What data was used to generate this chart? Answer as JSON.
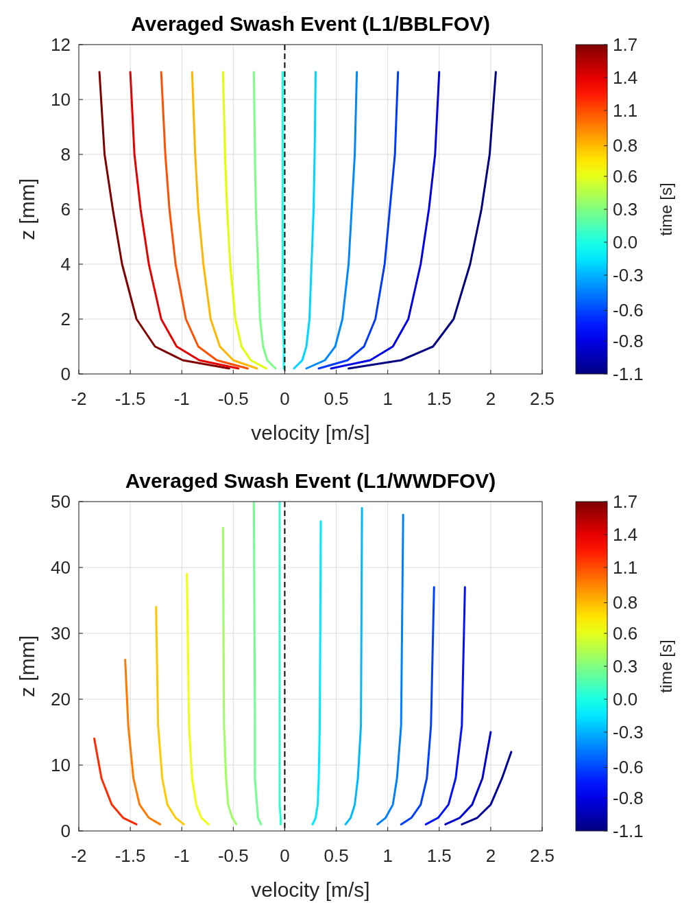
{
  "chart_data": [
    {
      "type": "line",
      "title": "Averaged Swash Event (L1/BBLFOV)",
      "xlabel": "velocity [m/s]",
      "ylabel": "z [mm]",
      "clabel": "time [s]",
      "xlim": [
        -2,
        2.5
      ],
      "xticks": [
        -2,
        -1.5,
        -1,
        -0.5,
        0,
        0.5,
        1,
        1.5,
        2,
        2.5
      ],
      "ylim": [
        0,
        12
      ],
      "yticks": [
        0,
        2,
        4,
        6,
        8,
        10,
        12
      ],
      "clim": [
        -1.1,
        1.7
      ],
      "cticks": [
        {
          "value": -1.1,
          "label": "-1.1"
        },
        {
          "value": -0.82,
          "label": "-0.8"
        },
        {
          "value": -0.56,
          "label": "-0.6"
        },
        {
          "value": -0.26,
          "label": "-0.3"
        },
        {
          "value": 0.02,
          "label": "0.0"
        },
        {
          "value": 0.3,
          "label": "0.3"
        },
        {
          "value": 0.58,
          "label": "0.6"
        },
        {
          "value": 0.84,
          "label": "0.8"
        },
        {
          "value": 1.14,
          "label": "1.1"
        },
        {
          "value": 1.42,
          "label": "1.4"
        },
        {
          "value": 1.7,
          "label": "1.7"
        }
      ],
      "grid": true,
      "ref_lines": [
        {
          "axis": "x",
          "value": 0,
          "color": "#000000",
          "line_style": "dashed"
        }
      ],
      "series": [
        {
          "color": "#800000",
          "x": [
            -0.54,
            -0.99,
            -1.26,
            -1.44,
            -1.58,
            -1.67,
            -1.75,
            -1.8
          ],
          "values": [
            0.2,
            0.5,
            1,
            2,
            4,
            6,
            8,
            11
          ]
        },
        {
          "color": "#e60000",
          "x": [
            -0.45,
            -0.83,
            -1.05,
            -1.2,
            -1.32,
            -1.4,
            -1.46,
            -1.5
          ],
          "values": [
            0.2,
            0.5,
            1,
            2,
            4,
            6,
            8,
            11
          ]
        },
        {
          "color": "#ff4f00",
          "x": [
            -0.36,
            -0.66,
            -0.84,
            -0.96,
            -1.06,
            -1.12,
            -1.16,
            -1.2
          ],
          "values": [
            0.2,
            0.5,
            1,
            2,
            4,
            6,
            8,
            11
          ]
        },
        {
          "color": "#ffb600",
          "x": [
            -0.27,
            -0.5,
            -0.63,
            -0.72,
            -0.79,
            -0.84,
            -0.87,
            -0.9
          ],
          "values": [
            0.2,
            0.5,
            1,
            2,
            4,
            6,
            8,
            11
          ]
        },
        {
          "color": "#e0ff00",
          "x": [
            -0.18,
            -0.33,
            -0.42,
            -0.48,
            -0.53,
            -0.56,
            -0.58,
            -0.6
          ],
          "values": [
            0.2,
            0.5,
            1,
            2,
            4,
            6,
            8,
            11
          ]
        },
        {
          "color": "#7aff85",
          "x": [
            -0.09,
            -0.17,
            -0.21,
            -0.24,
            -0.26,
            -0.28,
            -0.29,
            -0.3
          ],
          "values": [
            0.2,
            0.5,
            1,
            2,
            4,
            6,
            8,
            11
          ]
        },
        {
          "color": "#12ffed",
          "x": [
            -0.01,
            -0.01,
            -0.01,
            -0.02,
            -0.02,
            -0.02,
            -0.02,
            -0.02
          ],
          "values": [
            0.2,
            0.5,
            1,
            2,
            4,
            6,
            8,
            11
          ]
        },
        {
          "color": "#00d6ff",
          "x": [
            0.09,
            0.17,
            0.21,
            0.24,
            0.26,
            0.28,
            0.29,
            0.3
          ],
          "values": [
            0.2,
            0.5,
            1,
            2,
            4,
            6,
            8,
            11
          ]
        },
        {
          "color": "#0088ff",
          "x": [
            0.21,
            0.39,
            0.49,
            0.56,
            0.62,
            0.65,
            0.68,
            0.7
          ],
          "values": [
            0.2,
            0.5,
            1,
            2,
            4,
            6,
            8,
            11
          ]
        },
        {
          "color": "#003aff",
          "x": [
            0.33,
            0.61,
            0.77,
            0.88,
            0.97,
            1.02,
            1.07,
            1.1
          ],
          "values": [
            0.2,
            0.5,
            1,
            2,
            4,
            6,
            8,
            11
          ]
        },
        {
          "color": "#0000eb",
          "x": [
            0.45,
            0.83,
            1.05,
            1.2,
            1.32,
            1.4,
            1.46,
            1.5
          ],
          "values": [
            0.2,
            0.5,
            1,
            2,
            4,
            6,
            8,
            11
          ]
        },
        {
          "color": "#000080",
          "x": [
            0.62,
            1.13,
            1.44,
            1.64,
            1.8,
            1.91,
            1.99,
            2.05
          ],
          "values": [
            0.2,
            0.5,
            1,
            2,
            4,
            6,
            8,
            11
          ]
        }
      ]
    },
    {
      "type": "line",
      "title": "Averaged Swash Event (L1/WWDFOV)",
      "xlabel": "velocity [m/s]",
      "ylabel": "z [mm]",
      "clabel": "time [s]",
      "xlim": [
        -2,
        2.5
      ],
      "xticks": [
        -2,
        -1.5,
        -1,
        -0.5,
        0,
        0.5,
        1,
        1.5,
        2,
        2.5
      ],
      "ylim": [
        0,
        50
      ],
      "yticks": [
        0,
        10,
        20,
        30,
        40,
        50
      ],
      "clim": [
        -1.1,
        1.7
      ],
      "cticks": [
        {
          "value": -1.1,
          "label": "-1.1"
        },
        {
          "value": -0.82,
          "label": "-0.8"
        },
        {
          "value": -0.56,
          "label": "-0.6"
        },
        {
          "value": -0.26,
          "label": "-0.3"
        },
        {
          "value": 0.02,
          "label": "0.0"
        },
        {
          "value": 0.3,
          "label": "0.3"
        },
        {
          "value": 0.58,
          "label": "0.6"
        },
        {
          "value": 0.84,
          "label": "0.8"
        },
        {
          "value": 1.14,
          "label": "1.1"
        },
        {
          "value": 1.42,
          "label": "1.4"
        },
        {
          "value": 1.7,
          "label": "1.7"
        }
      ],
      "grid": true,
      "ref_lines": [
        {
          "axis": "x",
          "value": 0,
          "color": "#000000",
          "line_style": "dashed"
        }
      ],
      "series": [
        {
          "color": "#ff2a00",
          "x": [
            -1.44,
            -1.57,
            -1.68,
            -1.78,
            -1.85
          ],
          "values": [
            1,
            2,
            4,
            8,
            14
          ]
        },
        {
          "color": "#ff7a00",
          "x": [
            -1.21,
            -1.32,
            -1.41,
            -1.47,
            -1.52,
            -1.55
          ],
          "values": [
            1,
            2,
            4,
            8,
            16,
            26
          ]
        },
        {
          "color": "#ffc800",
          "x": [
            -0.98,
            -1.06,
            -1.14,
            -1.19,
            -1.23,
            -1.25
          ],
          "values": [
            1,
            2,
            4,
            8,
            16,
            34
          ]
        },
        {
          "color": "#f0ff10",
          "x": [
            -0.74,
            -0.81,
            -0.86,
            -0.9,
            -0.93,
            -0.95
          ],
          "values": [
            1,
            2,
            4,
            8,
            16,
            39
          ]
        },
        {
          "color": "#9dff60",
          "x": [
            -0.47,
            -0.51,
            -0.55,
            -0.57,
            -0.59,
            -0.6
          ],
          "values": [
            1,
            2,
            4,
            8,
            16,
            46
          ]
        },
        {
          "color": "#70ff8f",
          "x": [
            -0.23,
            -0.26,
            -0.27,
            -0.29,
            -0.29,
            -0.3
          ],
          "values": [
            1,
            2,
            4,
            8,
            16,
            50
          ]
        },
        {
          "color": "#30ffd0",
          "x": [
            -0.04,
            -0.04,
            -0.05,
            -0.05,
            -0.05,
            -0.05
          ],
          "values": [
            1,
            2,
            4,
            8,
            16,
            50
          ]
        },
        {
          "color": "#00e8ff",
          "x": [
            0.27,
            0.3,
            0.32,
            0.33,
            0.34,
            0.35
          ],
          "values": [
            1,
            2,
            4,
            8,
            16,
            47
          ]
        },
        {
          "color": "#00b8ff",
          "x": [
            0.59,
            0.64,
            0.68,
            0.71,
            0.74,
            0.75
          ],
          "values": [
            1,
            2,
            4,
            8,
            16,
            49
          ]
        },
        {
          "color": "#0080ff",
          "x": [
            0.9,
            0.98,
            1.05,
            1.09,
            1.13,
            1.15
          ],
          "values": [
            1,
            2,
            4,
            8,
            16,
            48
          ]
        },
        {
          "color": "#0040ff",
          "x": [
            1.13,
            1.23,
            1.32,
            1.38,
            1.42,
            1.45
          ],
          "values": [
            1,
            2,
            4,
            8,
            16,
            37
          ]
        },
        {
          "color": "#0010ff",
          "x": [
            1.37,
            1.49,
            1.59,
            1.66,
            1.72,
            1.75
          ],
          "values": [
            1,
            2,
            4,
            8,
            16,
            37
          ]
        },
        {
          "color": "#0000d0",
          "x": [
            1.56,
            1.7,
            1.82,
            1.92,
            2.0
          ],
          "values": [
            1,
            2,
            4,
            8,
            15
          ]
        },
        {
          "color": "#00009a",
          "x": [
            1.72,
            1.87,
            2.0,
            2.11,
            2.2
          ],
          "values": [
            1,
            2,
            4,
            8,
            12
          ]
        }
      ]
    }
  ]
}
